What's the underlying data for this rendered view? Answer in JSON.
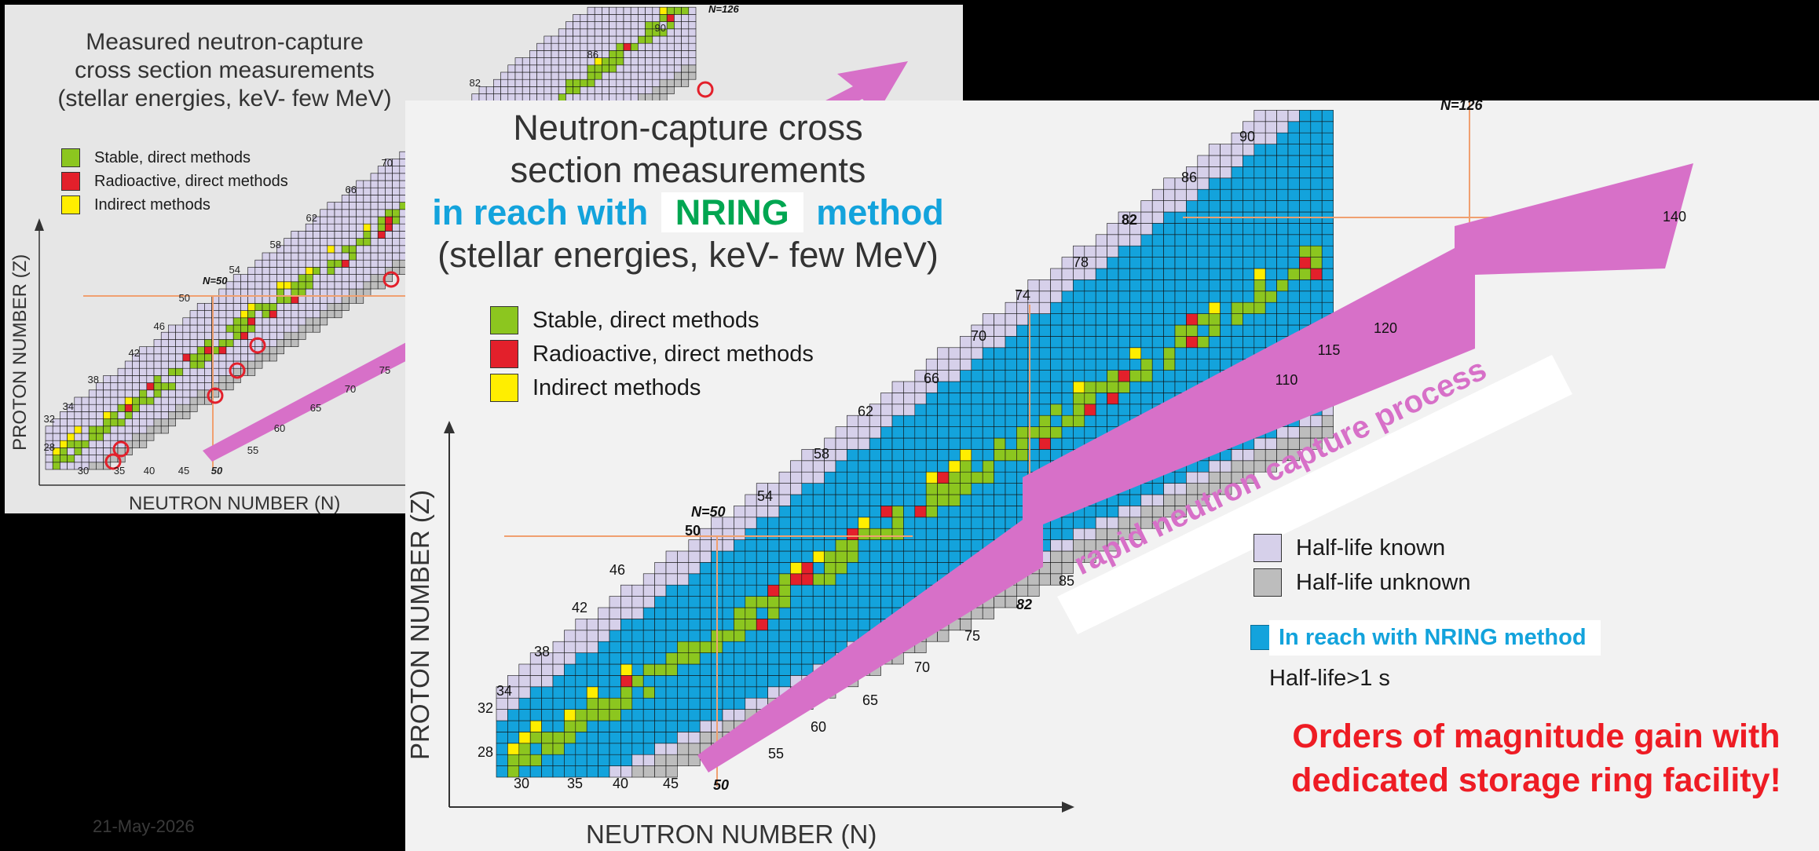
{
  "small_panel": {
    "title_lines": [
      "Measured neutron-capture",
      "cross section measurements",
      "(stellar energies, keV- few MeV)"
    ],
    "legend": [
      {
        "label": "Stable, direct methods",
        "color": "#8cc61f"
      },
      {
        "label": "Radioactive, direct methods",
        "color": "#e3202b"
      },
      {
        "label": "Indirect methods",
        "color": "#ffee00"
      }
    ],
    "x_axis_label": "NEUTRON NUMBER (N)",
    "y_axis_label": "PROTON NUMBER (Z)",
    "z_labels": [
      "28",
      "32",
      "34",
      "38",
      "42",
      "46",
      "50",
      "54",
      "58",
      "62",
      "66",
      "70",
      "82",
      "86",
      "90"
    ],
    "n_labels": [
      "30",
      "35",
      "40",
      "45",
      "50",
      "55",
      "60",
      "65",
      "70",
      "75"
    ],
    "magic_label": "N=50",
    "magic_label_top": "N=126",
    "date": "21-May-2026"
  },
  "big_panel": {
    "title_line1": "Neutron-capture cross",
    "title_line2": "section measurements",
    "title_line3_part1": "in reach with",
    "title_line3_nring": "NRING",
    "title_line3_part2": "method",
    "title_line4": "(stellar energies, keV- few MeV)",
    "legend": [
      {
        "label": "Stable, direct methods",
        "color": "#8cc61f"
      },
      {
        "label": "Radioactive, direct methods",
        "color": "#e3202b"
      },
      {
        "label": "Indirect methods",
        "color": "#ffee00"
      }
    ],
    "legend2": [
      {
        "label": "Half-life known",
        "color": "#d6d0ea"
      },
      {
        "label": "Half-life unknown",
        "color": "#bdbdbd"
      }
    ],
    "nring_legend_label": "In reach with NRING method",
    "nring_legend_sub": "Half-life>1 s",
    "nring_color": "#13a3dc",
    "arrow_text": "rapid neutron capture process",
    "arrow_color": "#d770c8",
    "conclusion_line1": "Orders of magnitude gain with",
    "conclusion_line2": "dedicated storage ring facility!",
    "x_axis_label": "NEUTRON NUMBER (N)",
    "y_axis_label": "PROTON NUMBER (Z)",
    "z_labels": [
      "28",
      "32",
      "34",
      "38",
      "42",
      "46",
      "50",
      "54",
      "58",
      "62",
      "66",
      "70",
      "74",
      "78",
      "82",
      "86",
      "90"
    ],
    "n_labels": [
      "30",
      "35",
      "40",
      "45",
      "50",
      "55",
      "60",
      "65",
      "70",
      "75",
      "82",
      "85",
      "110",
      "115",
      "120",
      "140"
    ],
    "magic_n50": "N=50",
    "magic_n126": "N=126",
    "accent_colors": {
      "title_blue": "#13a3dc",
      "nring_green": "#00a651",
      "conclusion_red": "#ee1c24"
    }
  }
}
